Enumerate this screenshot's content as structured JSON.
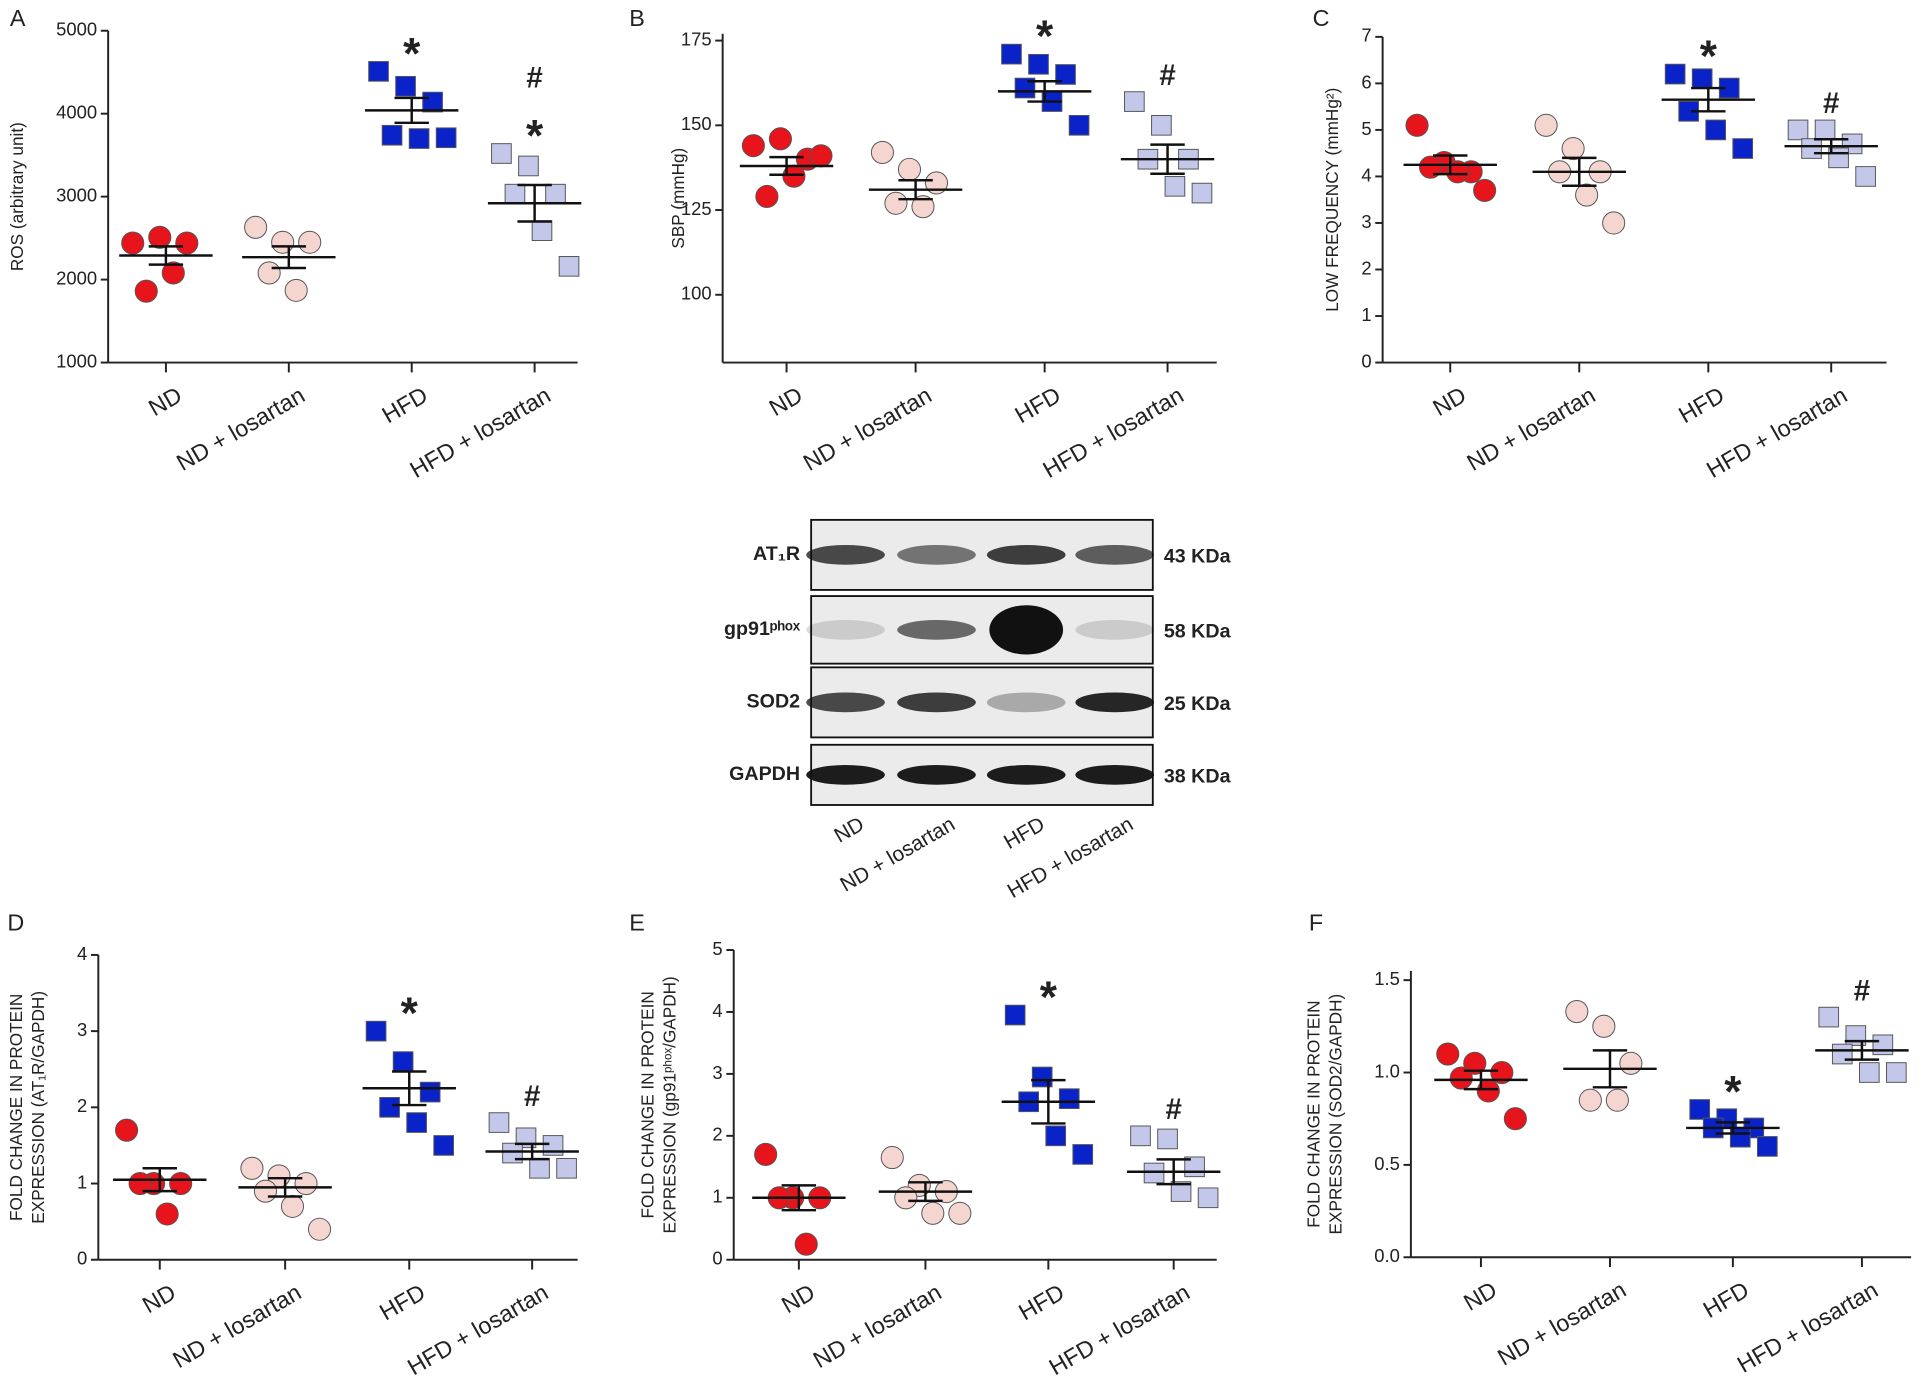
{
  "chart_data": [
    {
      "type": "dot",
      "panel": "A",
      "ylabel": "ROS (arbitrary unit)",
      "categories": [
        "ND",
        "ND + losartan",
        "HFD",
        "HFD + losartan"
      ],
      "ylim": [
        1000,
        5000
      ],
      "yticks": [
        1000,
        2000,
        3000,
        4000,
        5000
      ],
      "groups": [
        {
          "color": "#e8141c",
          "marker": "circle",
          "points": [
            2440,
            2510,
            2440,
            1860,
            2080
          ],
          "mean": 2290,
          "sem": 110
        },
        {
          "color": "#f5d5d0",
          "marker": "circle",
          "points": [
            2630,
            2450,
            2450,
            2080,
            1870
          ],
          "mean": 2270,
          "sem": 130
        },
        {
          "color": "#0a23c8",
          "marker": "square",
          "points": [
            4510,
            4330,
            4140,
            3740,
            3700,
            3710
          ],
          "mean": 4040,
          "sem": 150
        },
        {
          "color": "#c3c8ea",
          "marker": "square",
          "points": [
            3520,
            3370,
            3030,
            3030,
            2590,
            2160
          ],
          "mean": 2920,
          "sem": 220
        }
      ],
      "annotations": [
        {
          "category": "HFD",
          "text": "*"
        },
        {
          "category": "HFD + losartan",
          "text": "#"
        },
        {
          "category": "HFD + losartan",
          "text": "*"
        }
      ]
    },
    {
      "type": "dot",
      "panel": "B",
      "ylabel": "SBP (mmHg)",
      "categories": [
        "ND",
        "ND + losartan",
        "HFD",
        "HFD + losartan"
      ],
      "ylim": [
        80,
        177
      ],
      "yticks": [
        100,
        125,
        150,
        175
      ],
      "groups": [
        {
          "color": "#e8141c",
          "marker": "circle",
          "points": [
            144,
            146,
            140,
            129,
            135,
            141
          ],
          "mean": 138,
          "sem": 2.6
        },
        {
          "color": "#f5d5d0",
          "marker": "circle",
          "points": [
            142,
            137,
            133,
            127,
            126
          ],
          "mean": 131,
          "sem": 2.8
        },
        {
          "color": "#0a23c8",
          "marker": "square",
          "points": [
            171,
            168,
            165,
            161,
            157,
            150
          ],
          "mean": 160,
          "sem": 3
        },
        {
          "color": "#c3c8ea",
          "marker": "square",
          "points": [
            157,
            150,
            140,
            140,
            132,
            130
          ],
          "mean": 140,
          "sem": 4.3
        }
      ],
      "annotations": [
        {
          "category": "HFD",
          "text": "*"
        },
        {
          "category": "HFD + losartan",
          "text": "#"
        }
      ]
    },
    {
      "type": "dot",
      "panel": "C",
      "ylabel": "LOW FREQUENCY (mmHg²)",
      "categories": [
        "ND",
        "ND + losartan",
        "HFD",
        "HFD + losartan"
      ],
      "ylim": [
        0,
        7
      ],
      "yticks": [
        0,
        1,
        2,
        3,
        4,
        5,
        6,
        7
      ],
      "groups": [
        {
          "color": "#e8141c",
          "marker": "circle",
          "points": [
            5.1,
            4.3,
            4.1,
            4.2,
            4.1,
            3.7
          ],
          "mean": 4.25,
          "sem": 0.2
        },
        {
          "color": "#f5d5d0",
          "marker": "circle",
          "points": [
            5.1,
            4.6,
            4.1,
            4.1,
            3.6,
            3.0
          ],
          "mean": 4.1,
          "sem": 0.3
        },
        {
          "color": "#0a23c8",
          "marker": "square",
          "points": [
            6.2,
            6.1,
            5.9,
            5.4,
            5.0,
            4.6
          ],
          "mean": 5.65,
          "sem": 0.25
        },
        {
          "color": "#c3c8ea",
          "marker": "square",
          "points": [
            5.0,
            5.0,
            4.7,
            4.6,
            4.4,
            4.0
          ],
          "mean": 4.65,
          "sem": 0.15
        }
      ],
      "annotations": [
        {
          "category": "HFD",
          "text": "*"
        },
        {
          "category": "HFD + losartan",
          "text": "#"
        }
      ]
    },
    {
      "type": "dot",
      "panel": "D",
      "ylabel": [
        "FOLD CHANGE IN PROTEIN",
        "EXPRESSION (AT₁R/GAPDH)"
      ],
      "categories": [
        "ND",
        "ND + losartan",
        "HFD",
        "HFD + losartan"
      ],
      "ylim": [
        0,
        4
      ],
      "yticks": [
        0,
        1,
        2,
        3,
        4
      ],
      "groups": [
        {
          "color": "#e8141c",
          "marker": "circle",
          "points": [
            1.7,
            1.0,
            1.0,
            1.0,
            0.6
          ],
          "mean": 1.05,
          "sem": 0.15
        },
        {
          "color": "#f5d5d0",
          "marker": "circle",
          "points": [
            1.2,
            1.1,
            1.0,
            0.9,
            0.7,
            0.4
          ],
          "mean": 0.95,
          "sem": 0.12
        },
        {
          "color": "#0a23c8",
          "marker": "square",
          "points": [
            3.0,
            2.6,
            2.2,
            2.0,
            1.8,
            1.5
          ],
          "mean": 2.25,
          "sem": 0.22
        },
        {
          "color": "#c3c8ea",
          "marker": "square",
          "points": [
            1.8,
            1.6,
            1.5,
            1.4,
            1.2,
            1.2
          ],
          "mean": 1.42,
          "sem": 0.1
        }
      ],
      "annotations": [
        {
          "category": "HFD",
          "text": "*"
        },
        {
          "category": "HFD + losartan",
          "text": "#"
        }
      ]
    },
    {
      "type": "dot",
      "panel": "E",
      "ylabel": [
        "FOLD CHANGE IN PROTEIN",
        "EXPRESSION (gp91ᵖʰᵒˣ/GAPDH)"
      ],
      "categories": [
        "ND",
        "ND + losartan",
        "HFD",
        "HFD + losartan"
      ],
      "ylim": [
        0,
        5
      ],
      "yticks": [
        0,
        1,
        2,
        3,
        4,
        5
      ],
      "groups": [
        {
          "color": "#e8141c",
          "marker": "circle",
          "points": [
            1.7,
            1.0,
            1.0,
            1.0,
            0.25
          ],
          "mean": 1.0,
          "sem": 0.2
        },
        {
          "color": "#f5d5d0",
          "marker": "circle",
          "points": [
            1.65,
            1.2,
            1.1,
            1.0,
            0.75,
            0.75
          ],
          "mean": 1.1,
          "sem": 0.15
        },
        {
          "color": "#0a23c8",
          "marker": "square",
          "points": [
            3.95,
            2.95,
            2.6,
            2.55,
            2.0,
            1.7
          ],
          "mean": 2.55,
          "sem": 0.35
        },
        {
          "color": "#c3c8ea",
          "marker": "square",
          "points": [
            2.0,
            1.95,
            1.5,
            1.4,
            1.1,
            1.0
          ],
          "mean": 1.42,
          "sem": 0.2
        }
      ],
      "annotations": [
        {
          "category": "HFD",
          "text": "*"
        },
        {
          "category": "HFD + losartan",
          "text": "#"
        }
      ]
    },
    {
      "type": "dot",
      "panel": "F",
      "ylabel": [
        "FOLD CHANGE IN PROTEIN",
        "EXPRESSION (SOD2/GAPDH)"
      ],
      "categories": [
        "ND",
        "ND + losartan",
        "HFD",
        "HFD + losartan"
      ],
      "ylim": [
        0,
        1.55
      ],
      "yticks": [
        {
          "value": 0,
          "label": "0.0"
        },
        0.5,
        {
          "value": 1,
          "label": "1.0"
        },
        1.5
      ],
      "groups": [
        {
          "color": "#e8141c",
          "marker": "circle",
          "points": [
            1.1,
            1.05,
            1.0,
            0.97,
            0.9,
            0.75
          ],
          "mean": 0.96,
          "sem": 0.05
        },
        {
          "color": "#f5d5d0",
          "marker": "circle",
          "points": [
            1.33,
            1.25,
            1.05,
            0.85,
            0.85
          ],
          "mean": 1.02,
          "sem": 0.1
        },
        {
          "color": "#0a23c8",
          "marker": "square",
          "points": [
            0.8,
            0.75,
            0.7,
            0.7,
            0.65,
            0.6
          ],
          "mean": 0.7,
          "sem": 0.03
        },
        {
          "color": "#c3c8ea",
          "marker": "square",
          "points": [
            1.3,
            1.2,
            1.15,
            1.1,
            1.0,
            1.0
          ],
          "mean": 1.12,
          "sem": 0.05
        }
      ],
      "annotations": [
        {
          "category": "HFD",
          "text": "*"
        },
        {
          "category": "HFD + losartan",
          "text": "#"
        }
      ]
    }
  ],
  "blot": {
    "rows": [
      {
        "label": "AT₁R",
        "size": "43 KDa"
      },
      {
        "label": "gp91ᵖʰᵒˣ",
        "size": "58 KDa"
      },
      {
        "label": "SOD2",
        "size": "25 KDa"
      },
      {
        "label": "GAPDH",
        "size": "38 KDa"
      }
    ],
    "lanes": [
      "ND",
      "ND + losartan",
      "HFD",
      "HFD + losartan"
    ]
  }
}
